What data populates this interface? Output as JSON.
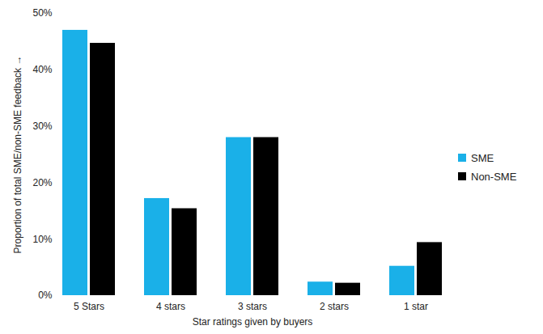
{
  "chart_data": {
    "type": "bar",
    "x_label": "Star ratings given by buyers",
    "y_label": "Proportion of total SME/non-SME feedback",
    "categories": [
      "5 Stars",
      "4 stars",
      "3 stars",
      "2 stars",
      "1 star"
    ],
    "series": [
      {
        "name": "SME",
        "color": "#1ab0e8",
        "values": [
          47,
          17.2,
          28,
          2.4,
          5.2
        ]
      },
      {
        "name": "Non-SME",
        "color": "#000000",
        "values": [
          44.7,
          15.4,
          28,
          2.2,
          9.4
        ]
      }
    ],
    "ylim": [
      0,
      50
    ],
    "yticks": [
      {
        "value": 0,
        "label": "0%"
      },
      {
        "value": 10,
        "label": "10%"
      },
      {
        "value": 20,
        "label": "20%"
      },
      {
        "value": 30,
        "label": "30%"
      },
      {
        "value": 40,
        "label": "40%"
      },
      {
        "value": 50,
        "label": "50%"
      }
    ],
    "grid": false,
    "legend": "right"
  }
}
